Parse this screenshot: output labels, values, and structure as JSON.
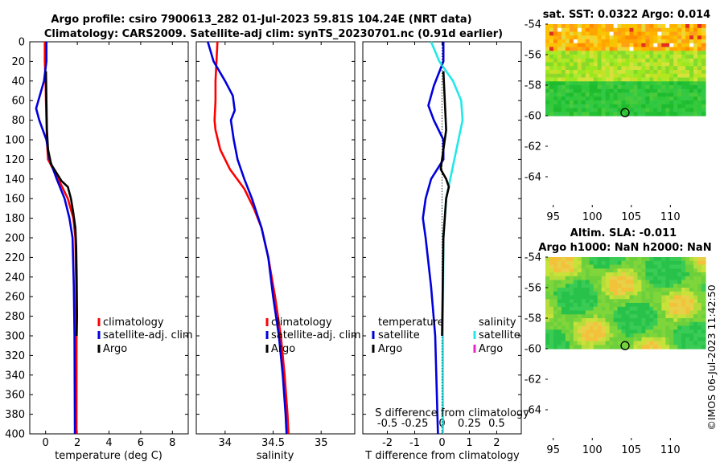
{
  "title_line1": "Argo profile: csiro 7900613_282 01-Jul-2023 59.81S 104.24E (NRT data)",
  "title_line2": "Climatology: CARS2009. Satellite-adj clim: synTS_20230701.nc (0.91d earlier)",
  "watermark": "©IMOS 06-Jul-2023 11:42:50",
  "colors": {
    "climatology": "#ff0000",
    "satellite": "#0000dd",
    "argo": "#000000",
    "sat_salinity": "#22e8e8",
    "magenta": "#ee22cc"
  },
  "chart_data": [
    {
      "type": "line",
      "id": "temperature",
      "xlabel": "temperature (deg C)",
      "xlim": [
        -1,
        9
      ],
      "ylim": [
        0,
        400
      ],
      "xticks": [
        0,
        2,
        4,
        6,
        8
      ],
      "yticks": [
        0,
        20,
        40,
        60,
        80,
        100,
        120,
        140,
        160,
        180,
        200,
        220,
        240,
        260,
        280,
        300,
        320,
        340,
        360,
        380,
        400
      ],
      "legend": [
        "climatology",
        "satellite-adj. clim",
        "Argo"
      ],
      "series": [
        {
          "name": "climatology",
          "color": "#ff0000",
          "points": [
            [
              -0.05,
              0
            ],
            [
              -0.05,
              20
            ],
            [
              0,
              40
            ],
            [
              0.02,
              60
            ],
            [
              0.05,
              80
            ],
            [
              0.08,
              100
            ],
            [
              0.15,
              120
            ],
            [
              0.8,
              140
            ],
            [
              1.4,
              160
            ],
            [
              1.75,
              180
            ],
            [
              1.88,
              200
            ],
            [
              1.93,
              250
            ],
            [
              1.95,
              300
            ],
            [
              1.95,
              400
            ]
          ]
        },
        {
          "name": "satellite-adj. clim",
          "color": "#0000dd",
          "points": [
            [
              0.05,
              0
            ],
            [
              0.05,
              20
            ],
            [
              -0.1,
              40
            ],
            [
              -0.6,
              68
            ],
            [
              -0.4,
              80
            ],
            [
              0.05,
              100
            ],
            [
              0.25,
              120
            ],
            [
              0.7,
              140
            ],
            [
              1.2,
              160
            ],
            [
              1.5,
              180
            ],
            [
              1.7,
              200
            ],
            [
              1.78,
              250
            ],
            [
              1.82,
              300
            ],
            [
              1.85,
              400
            ]
          ]
        },
        {
          "name": "Argo",
          "color": "#000000",
          "points": [
            [
              0.02,
              30
            ],
            [
              0.05,
              60
            ],
            [
              0.08,
              90
            ],
            [
              0.15,
              110
            ],
            [
              0.35,
              125
            ],
            [
              1.0,
              142
            ],
            [
              1.4,
              148
            ],
            [
              1.6,
              160
            ],
            [
              1.75,
              175
            ],
            [
              1.88,
              190
            ],
            [
              1.93,
              210
            ],
            [
              1.96,
              240
            ],
            [
              1.98,
              280
            ],
            [
              1.96,
              300
            ]
          ]
        }
      ]
    },
    {
      "type": "line",
      "id": "salinity",
      "xlabel": "salinity",
      "xlim": [
        33.7,
        35.35
      ],
      "ylim": [
        0,
        400
      ],
      "xticks": [
        34,
        34.5,
        35
      ],
      "xticklabels": [
        "34",
        "34.5",
        "35"
      ],
      "legend": [
        "climatology",
        "satellite-adj. clim",
        "Argo"
      ],
      "series": [
        {
          "name": "climatology",
          "color": "#ff0000",
          "points": [
            [
              33.92,
              0
            ],
            [
              33.91,
              20
            ],
            [
              33.9,
              40
            ],
            [
              33.9,
              60
            ],
            [
              33.89,
              80
            ],
            [
              33.9,
              90
            ],
            [
              33.95,
              110
            ],
            [
              34.05,
              130
            ],
            [
              34.2,
              150
            ],
            [
              34.3,
              170
            ],
            [
              34.38,
              190
            ],
            [
              34.45,
              220
            ],
            [
              34.52,
              260
            ],
            [
              34.58,
              300
            ],
            [
              34.62,
              340
            ],
            [
              34.65,
              380
            ],
            [
              34.66,
              400
            ]
          ]
        },
        {
          "name": "satellite-adj. clim",
          "color": "#0000dd",
          "points": [
            [
              33.82,
              0
            ],
            [
              33.88,
              20
            ],
            [
              34.0,
              40
            ],
            [
              34.08,
              55
            ],
            [
              34.1,
              70
            ],
            [
              34.06,
              80
            ],
            [
              34.09,
              100
            ],
            [
              34.13,
              120
            ],
            [
              34.2,
              140
            ],
            [
              34.28,
              160
            ],
            [
              34.38,
              190
            ],
            [
              34.45,
              220
            ],
            [
              34.5,
              260
            ],
            [
              34.56,
              300
            ],
            [
              34.6,
              340
            ],
            [
              34.63,
              380
            ],
            [
              34.64,
              400
            ]
          ]
        }
      ]
    },
    {
      "type": "line",
      "id": "difference",
      "xlabel": "T difference from climatology",
      "top_xlabel": "S difference from climatology",
      "xlim": [
        -2.9,
        2.9
      ],
      "ylim": [
        0,
        400
      ],
      "xticks": [
        -2,
        -1,
        0,
        1,
        2
      ],
      "xticklabels": [
        "-2",
        "-1",
        "0",
        "1",
        "2"
      ],
      "top_xticks": [
        -2,
        -1,
        0,
        1,
        2
      ],
      "top_xticklabels": [
        "-0.5",
        "-0.25",
        "0",
        "0.25",
        "0.5"
      ],
      "legend_left": [
        "temperature",
        "satellite",
        "Argo"
      ],
      "legend_right": [
        "salinity",
        "satellite",
        "Argo"
      ],
      "series": [
        {
          "name": "T satellite",
          "color": "#0000dd",
          "points": [
            [
              0.05,
              0
            ],
            [
              0.05,
              20
            ],
            [
              -0.3,
              45
            ],
            [
              -0.5,
              65
            ],
            [
              -0.3,
              80
            ],
            [
              0.05,
              100
            ],
            [
              0.05,
              120
            ],
            [
              -0.4,
              140
            ],
            [
              -0.6,
              160
            ],
            [
              -0.7,
              180
            ],
            [
              -0.6,
              200
            ],
            [
              -0.4,
              250
            ],
            [
              -0.25,
              300
            ],
            [
              -0.15,
              400
            ]
          ]
        },
        {
          "name": "S satellite",
          "color": "#22e8e8",
          "points": [
            [
              -0.4,
              0
            ],
            [
              -0.1,
              20
            ],
            [
              0.4,
              40
            ],
            [
              0.7,
              60
            ],
            [
              0.75,
              80
            ],
            [
              0.6,
              100
            ],
            [
              0.45,
              120
            ],
            [
              0.3,
              140
            ],
            [
              0.15,
              160
            ],
            [
              0.05,
              200
            ],
            [
              0.03,
              300
            ],
            [
              0.03,
              400
            ]
          ]
        },
        {
          "name": "T Argo",
          "color": "#000000",
          "points": [
            [
              0.05,
              30
            ],
            [
              0.1,
              60
            ],
            [
              0.15,
              90
            ],
            [
              0.05,
              110
            ],
            [
              -0.05,
              130
            ],
            [
              0.15,
              140
            ],
            [
              0.25,
              148
            ],
            [
              0.15,
              160
            ],
            [
              0.1,
              180
            ],
            [
              0.05,
              200
            ],
            [
              0.02,
              260
            ],
            [
              0.0,
              300
            ]
          ]
        }
      ]
    },
    {
      "type": "heatmap",
      "id": "sat_sst",
      "title": "sat. SST: 0.0322 Argo: 0.014",
      "xlim": [
        94,
        114.5
      ],
      "ylim": [
        -54,
        -66
      ],
      "xticks": [
        95,
        100,
        105,
        110
      ],
      "yticks": [
        -54,
        -56,
        -58,
        -60,
        -62,
        -64
      ],
      "xticklabels": [
        "95",
        "100",
        "105",
        "110"
      ],
      "yticklabels": [
        "-54",
        "-56",
        "-58",
        "-60",
        "-62",
        "-64"
      ],
      "marker": {
        "lon": 104.2,
        "lat": -59.8
      },
      "data_lat_max": -60
    },
    {
      "type": "heatmap",
      "id": "altim_sla",
      "title": "Altim. SLA: -0.011",
      "subtitle": "Argo h1000: NaN h2000: NaN",
      "xlim": [
        94,
        114.5
      ],
      "ylim": [
        -54,
        -66
      ],
      "xticks": [
        95,
        100,
        105,
        110
      ],
      "yticks": [
        -54,
        -56,
        -58,
        -60,
        -62,
        -64
      ],
      "xticklabels": [
        "95",
        "100",
        "105",
        "110"
      ],
      "yticklabels": [
        "-54",
        "-56",
        "-58",
        "-60",
        "-62",
        "-64"
      ],
      "marker": {
        "lon": 104.2,
        "lat": -59.8
      },
      "data_lat_max": -60
    }
  ]
}
